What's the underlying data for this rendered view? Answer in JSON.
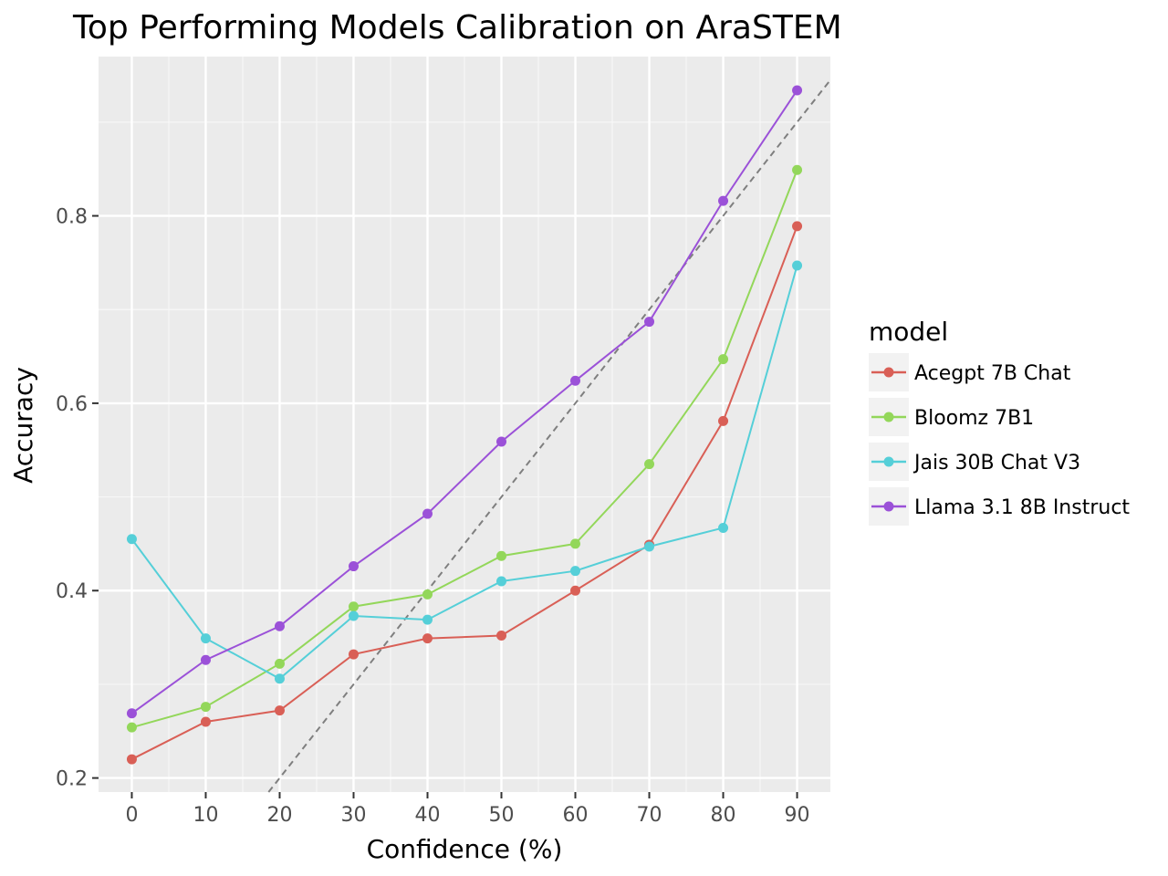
{
  "chart_data": {
    "type": "line",
    "title": "Top Performing Models Calibration on AraSTEM",
    "xlabel": "Confidence (%)",
    "ylabel": "Accuracy",
    "x": [
      0,
      10,
      20,
      30,
      40,
      50,
      60,
      70,
      80,
      90
    ],
    "xlim": [
      -4.5,
      94.5
    ],
    "ylim": [
      0.185,
      0.97
    ],
    "x_ticks": [
      0,
      10,
      20,
      30,
      40,
      50,
      60,
      70,
      80,
      90
    ],
    "y_ticks": [
      0.2,
      0.4,
      0.6,
      0.8
    ],
    "x_tick_labels": [
      "0",
      "10",
      "20",
      "30",
      "40",
      "50",
      "60",
      "70",
      "80",
      "90"
    ],
    "y_tick_labels": [
      "0.2",
      "0.4",
      "0.6",
      "0.8"
    ],
    "grid": true,
    "reference_line": {
      "style": "dashed",
      "color": "#7f7f7f",
      "description": "perfect calibration y = x/100"
    },
    "legend": {
      "title": "model",
      "position": "right"
    },
    "series": [
      {
        "name": "Acegpt 7B Chat",
        "color": "#d95f56",
        "values": [
          0.22,
          0.26,
          0.272,
          0.332,
          0.349,
          0.352,
          0.4,
          0.449,
          0.581,
          0.789
        ]
      },
      {
        "name": "Bloomz 7B1",
        "color": "#93d75a",
        "values": [
          0.254,
          0.276,
          0.322,
          0.383,
          0.396,
          0.437,
          0.45,
          0.535,
          0.647,
          0.849
        ]
      },
      {
        "name": "Jais 30B Chat V3",
        "color": "#55cfd8",
        "values": [
          0.455,
          0.349,
          0.306,
          0.373,
          0.369,
          0.41,
          0.421,
          0.447,
          0.467,
          0.747
        ]
      },
      {
        "name": "Llama 3.1 8B Instruct",
        "color": "#9b51d8",
        "values": [
          0.269,
          0.326,
          0.362,
          0.426,
          0.482,
          0.559,
          0.624,
          0.687,
          0.816,
          0.934
        ]
      }
    ]
  }
}
